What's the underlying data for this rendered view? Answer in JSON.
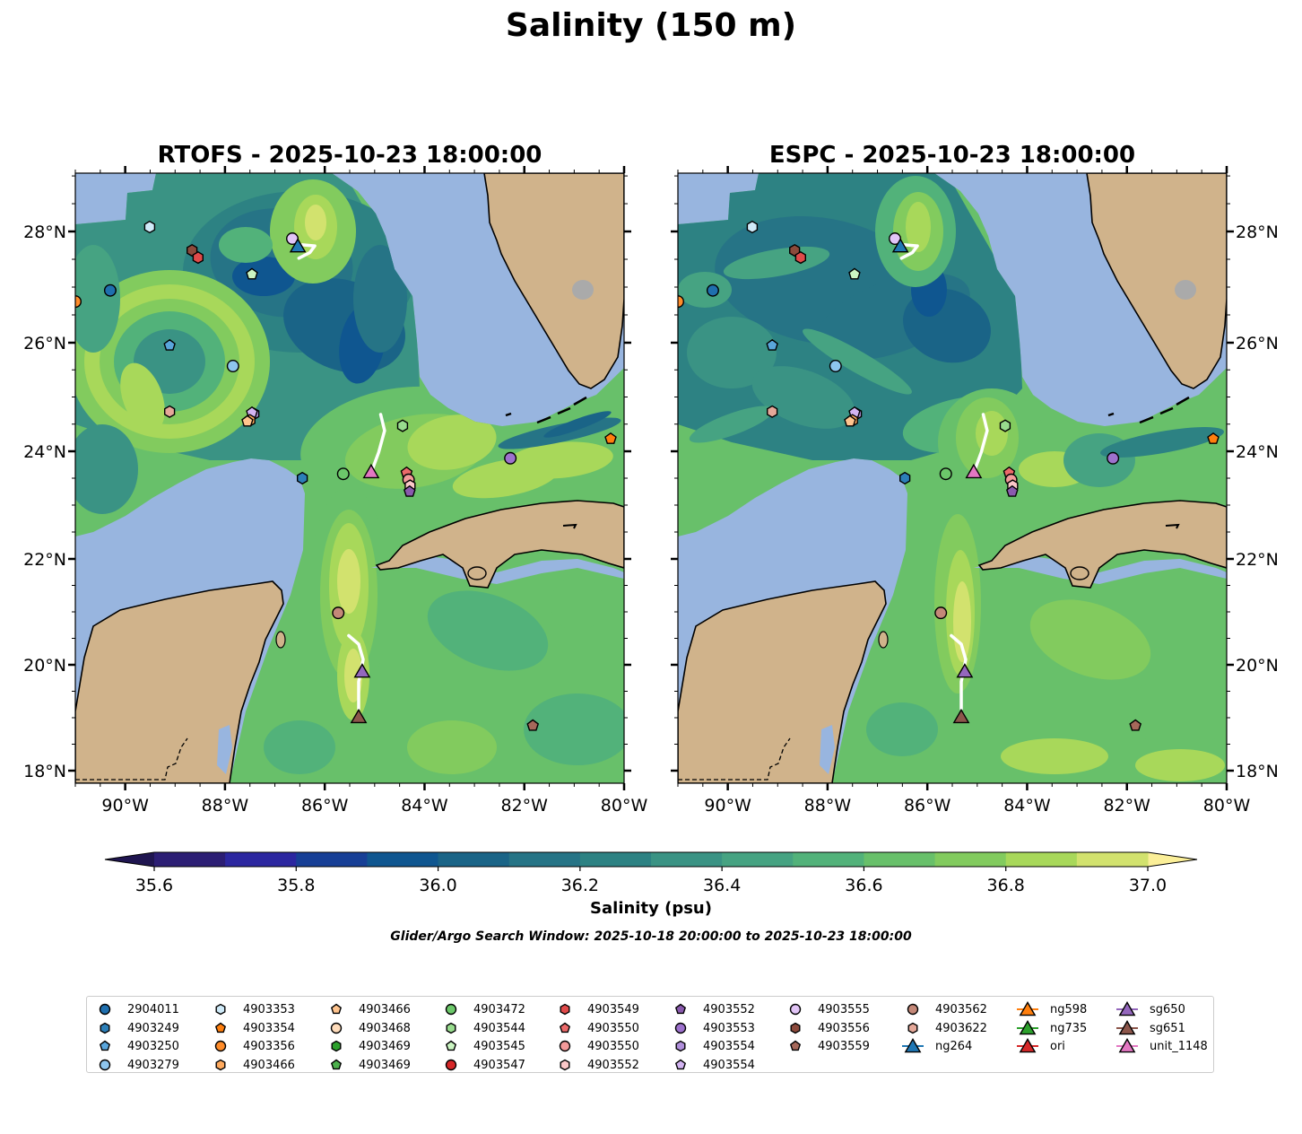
{
  "title": "Salinity (150 m)",
  "panels": [
    {
      "title": "RTOFS - 2025-10-23 18:00:00",
      "model": "RTOFS"
    },
    {
      "title": "ESPC - 2025-10-23 18:00:00",
      "model": "ESPC"
    }
  ],
  "chart_data": {
    "type": "heatmap",
    "title": "Salinity (150 m)",
    "xlabel": "Longitude",
    "ylabel": "Latitude",
    "xlim": [
      -91,
      -80
    ],
    "ylim": [
      17.76,
      29.05
    ],
    "xticks": [
      {
        "value": -90,
        "label": "90°W"
      },
      {
        "value": -88,
        "label": "88°W"
      },
      {
        "value": -86,
        "label": "86°W"
      },
      {
        "value": -84,
        "label": "84°W"
      },
      {
        "value": -82,
        "label": "82°W"
      },
      {
        "value": -80,
        "label": "80°W"
      }
    ],
    "yticks": [
      {
        "value": 28,
        "label": "28°N"
      },
      {
        "value": 26,
        "label": "26°N"
      },
      {
        "value": 24,
        "label": "24°N"
      },
      {
        "value": 22,
        "label": "22°N"
      },
      {
        "value": 20,
        "label": "20°N"
      },
      {
        "value": 18,
        "label": "18°N"
      }
    ],
    "colorbar": {
      "label": "Salinity (psu)",
      "vmin": 35.6,
      "vmax": 37.0,
      "step": 0.1,
      "ticks": [
        {
          "value": 35.6,
          "label": "35.6"
        },
        {
          "value": 35.8,
          "label": "35.8"
        },
        {
          "value": 36.0,
          "label": "36.0"
        },
        {
          "value": 36.2,
          "label": "36.2"
        },
        {
          "value": 36.4,
          "label": "36.4"
        },
        {
          "value": 36.6,
          "label": "36.6"
        },
        {
          "value": 36.8,
          "label": "36.8"
        },
        {
          "value": 37.0,
          "label": "37.0"
        }
      ],
      "colors": [
        "#2c1e74",
        "#2c27a0",
        "#173f96",
        "#0f5690",
        "#1a6487",
        "#267486",
        "#2d8283",
        "#3a9384",
        "#46a382",
        "#52b27a",
        "#68c06a",
        "#82cb5e",
        "#a8d85a",
        "#d2e26e"
      ],
      "extend_min_color": "#1f1550",
      "extend_max_color": "#fbef98"
    },
    "markers": [
      {
        "id": "4903356",
        "shape": "circle",
        "color": "#ff8c2a",
        "lon": -91.0,
        "lat": 26.74
      },
      {
        "id": "2904011",
        "shape": "circle",
        "color": "#1f6fae",
        "lon": -90.3,
        "lat": 26.94
      },
      {
        "id": "4903353",
        "shape": "hexagon",
        "color": "#cfeaf8",
        "lon": -89.51,
        "lat": 28.08
      },
      {
        "id": "4903556",
        "shape": "hexagon",
        "color": "#8c4a3c",
        "lon": -88.66,
        "lat": 27.66
      },
      {
        "id": "4903549",
        "shape": "hexagon",
        "color": "#e04a4a",
        "lon": -88.54,
        "lat": 27.53
      },
      {
        "id": "4903545",
        "shape": "pentagon",
        "color": "#cbf5c2",
        "lon": -87.46,
        "lat": 27.23
      },
      {
        "id": "4903555",
        "shape": "circle",
        "color": "#e2c5f7",
        "lon": -86.65,
        "lat": 27.87
      },
      {
        "id": "4903250",
        "shape": "pentagon",
        "color": "#5aa6dc",
        "lon": -89.11,
        "lat": 25.95
      },
      {
        "id": "4903279",
        "shape": "circle",
        "color": "#8ec6ee",
        "lon": -87.84,
        "lat": 25.57
      },
      {
        "id": "4903622",
        "shape": "hexagon",
        "color": "#e5a899",
        "lon": -89.11,
        "lat": 24.73
      },
      {
        "id": "4903554",
        "shape": "hexagon",
        "color": "#b08fdb",
        "lon": -87.42,
        "lat": 24.69
      },
      {
        "id": "4903554",
        "shape": "pentagon",
        "color": "#d3b4f2",
        "lon": -87.46,
        "lat": 24.71
      },
      {
        "id": "4903466",
        "shape": "hexagon",
        "color": "#ffaa5e",
        "lon": -87.5,
        "lat": 24.57
      },
      {
        "id": "4903466",
        "shape": "pentagon",
        "color": "#ffc48e",
        "lon": -87.55,
        "lat": 24.55
      },
      {
        "id": "4903249",
        "shape": "hexagon",
        "color": "#2c7fb8",
        "lon": -86.45,
        "lat": 23.5
      },
      {
        "id": "4903472",
        "shape": "circle",
        "color": "#6cc86a",
        "lon": -85.63,
        "lat": 23.58
      },
      {
        "id": "4903544",
        "shape": "hexagon",
        "color": "#98dc8e",
        "lon": -84.44,
        "lat": 24.47
      },
      {
        "id": "4903550",
        "shape": "pentagon",
        "color": "#ec6a6a",
        "lon": -84.36,
        "lat": 23.6
      },
      {
        "id": "4903550",
        "shape": "circle",
        "color": "#f39a9a",
        "lon": -84.32,
        "lat": 23.47
      },
      {
        "id": "4903552",
        "shape": "hexagon",
        "color": "#fbc8c8",
        "lon": -84.29,
        "lat": 23.36
      },
      {
        "id": "4903552",
        "shape": "pentagon",
        "color": "#8a5aae",
        "lon": -84.3,
        "lat": 23.25
      },
      {
        "id": "4903553",
        "shape": "circle",
        "color": "#9d71cd",
        "lon": -82.28,
        "lat": 23.87
      },
      {
        "id": "4903354",
        "shape": "pentagon",
        "color": "#ff7f0e",
        "lon": -80.27,
        "lat": 24.23
      },
      {
        "id": "4903562",
        "shape": "circle",
        "color": "#c48878",
        "lon": -85.73,
        "lat": 20.98
      },
      {
        "id": "4903559",
        "shape": "pentagon",
        "color": "#a6685a",
        "lon": -81.83,
        "lat": 18.85
      },
      {
        "id": "ng264",
        "shape": "triangle",
        "color": "#1f77b4",
        "lon": -86.54,
        "lat": 27.74
      },
      {
        "id": "unit_1148",
        "shape": "triangle",
        "color": "#e377c2",
        "lon": -85.07,
        "lat": 23.62
      },
      {
        "id": "sg650",
        "shape": "triangle",
        "color": "#9467bd",
        "lon": -85.25,
        "lat": 19.88
      },
      {
        "id": "sg651",
        "shape": "triangle",
        "color": "#8c564b",
        "lon": -85.32,
        "lat": 19.02
      }
    ],
    "tracks": [
      {
        "id": "ng264",
        "points": [
          [
            -86.45,
            27.76
          ],
          [
            -86.2,
            27.74
          ],
          [
            -86.3,
            27.62
          ],
          [
            -86.52,
            27.52
          ]
        ]
      },
      {
        "id": "unit_1148",
        "points": [
          [
            -84.88,
            24.68
          ],
          [
            -84.8,
            24.38
          ],
          [
            -84.92,
            23.98
          ],
          [
            -85.05,
            23.65
          ]
        ]
      },
      {
        "id": "sg650-sg651",
        "points": [
          [
            -85.52,
            20.55
          ],
          [
            -85.32,
            20.39
          ],
          [
            -85.23,
            20.1
          ],
          [
            -85.32,
            19.68
          ],
          [
            -85.32,
            19.17
          ]
        ]
      }
    ]
  },
  "caption": "Glider/Argo Search Window: 2025-10-18 20:00:00 to 2025-10-23 18:00:00",
  "legend": {
    "columns": [
      [
        {
          "label": "2904011",
          "shape": "circle",
          "color": "#1f6fae"
        },
        {
          "label": "4903249",
          "shape": "hexagon",
          "color": "#2c7fb8"
        },
        {
          "label": "4903250",
          "shape": "pentagon",
          "color": "#5aa6dc"
        },
        {
          "label": "4903279",
          "shape": "circle",
          "color": "#8ec6ee"
        }
      ],
      [
        {
          "label": "4903353",
          "shape": "hexagon",
          "color": "#cfeaf8"
        },
        {
          "label": "4903354",
          "shape": "pentagon",
          "color": "#ff7f0e"
        },
        {
          "label": "4903356",
          "shape": "circle",
          "color": "#ff8c2a"
        },
        {
          "label": "4903466",
          "shape": "hexagon",
          "color": "#ffaa5e"
        }
      ],
      [
        {
          "label": "4903466",
          "shape": "pentagon",
          "color": "#ffc48e"
        },
        {
          "label": "4903468",
          "shape": "circle",
          "color": "#ffdcbb"
        },
        {
          "label": "4903469",
          "shape": "hexagon",
          "color": "#2ca02c"
        },
        {
          "label": "4903469",
          "shape": "pentagon",
          "color": "#4cb04c"
        }
      ],
      [
        {
          "label": "4903472",
          "shape": "circle",
          "color": "#6cc86a"
        },
        {
          "label": "4903544",
          "shape": "hexagon",
          "color": "#98dc8e"
        },
        {
          "label": "4903545",
          "shape": "pentagon",
          "color": "#cbf5c2"
        },
        {
          "label": "4903547",
          "shape": "circle",
          "color": "#d62728"
        }
      ],
      [
        {
          "label": "4903549",
          "shape": "hexagon",
          "color": "#e04a4a"
        },
        {
          "label": "4903550",
          "shape": "pentagon",
          "color": "#ec6a6a"
        },
        {
          "label": "4903550",
          "shape": "circle",
          "color": "#f39a9a"
        },
        {
          "label": "4903552",
          "shape": "hexagon",
          "color": "#fbc8c8"
        }
      ],
      [
        {
          "label": "4903552",
          "shape": "pentagon",
          "color": "#8a5aae"
        },
        {
          "label": "4903553",
          "shape": "circle",
          "color": "#9d71cd"
        },
        {
          "label": "4903554",
          "shape": "hexagon",
          "color": "#b08fdb"
        },
        {
          "label": "4903554",
          "shape": "pentagon",
          "color": "#d3b4f2"
        }
      ],
      [
        {
          "label": "4903555",
          "shape": "circle",
          "color": "#e2c5f7"
        },
        {
          "label": "4903556",
          "shape": "hexagon",
          "color": "#8c4a3c"
        },
        {
          "label": "4903559",
          "shape": "pentagon",
          "color": "#a6685a"
        }
      ],
      [
        {
          "label": "4903562",
          "shape": "circle",
          "color": "#c48878"
        },
        {
          "label": "4903622",
          "shape": "hexagon",
          "color": "#e5a899"
        },
        {
          "label": "ng264",
          "shape": "triangle",
          "color": "#1f77b4",
          "line": true
        }
      ],
      [
        {
          "label": "ng598",
          "shape": "triangle",
          "color": "#ff7f0e",
          "line": true
        },
        {
          "label": "ng735",
          "shape": "triangle",
          "color": "#2ca02c",
          "line": true
        },
        {
          "label": "ori",
          "shape": "triangle",
          "color": "#d62728",
          "line": true
        }
      ],
      [
        {
          "label": "sg650",
          "shape": "triangle",
          "color": "#9467bd",
          "line": true
        },
        {
          "label": "sg651",
          "shape": "triangle",
          "color": "#8c564b",
          "line": true
        },
        {
          "label": "unit_1148",
          "shape": "triangle",
          "color": "#e377c2",
          "line": true
        }
      ]
    ]
  },
  "colors": {
    "land": "#d0b38b",
    "no_data": "#98b5df",
    "track": "#ffffff"
  }
}
